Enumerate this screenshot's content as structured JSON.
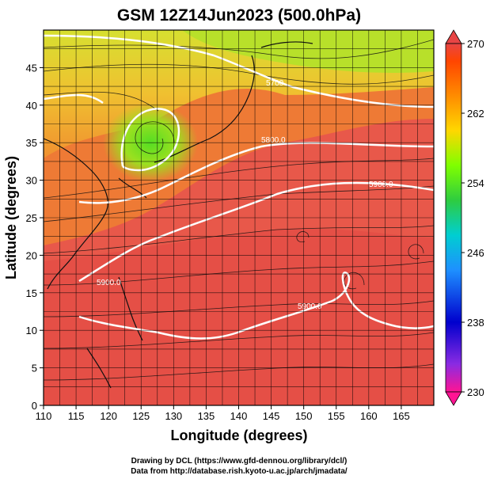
{
  "title": "GSM 12Z14Jun2023 (500.0hPa)",
  "xlabel": "Longitude (degrees)",
  "ylabel": "Latitude  (degrees)",
  "credit_line1": "Drawing by DCL (https://www.gfd-dennou.org/library/dcl/)",
  "credit_line2": "Data from http://database.rish.kyoto-u.ac.jp/arch/jmadata/",
  "chart_data": {
    "type": "heatmap",
    "title": "GSM 12Z14Jun2023 (500.0hPa)",
    "xlabel": "Longitude (degrees)",
    "ylabel": "Latitude  (degrees)",
    "xlim": [
      110,
      170
    ],
    "ylim": [
      0,
      50
    ],
    "x_ticks": [
      "110",
      "115",
      "120",
      "125",
      "130",
      "135",
      "140",
      "145",
      "150",
      "155",
      "160",
      "165"
    ],
    "y_ticks": [
      "0",
      "5",
      "10",
      "15",
      "20",
      "25",
      "30",
      "35",
      "40",
      "45"
    ],
    "colorbar": {
      "min": 230,
      "max": 270,
      "labels": [
        "270",
        "262",
        "254",
        "246",
        "238",
        "230"
      ],
      "colors": [
        "#ff1493",
        "#6a0dad",
        "#0000cd",
        "#1e90ff",
        "#00ced1",
        "#32cd32",
        "#7fff00",
        "#ffd700",
        "#ff8c00",
        "#ff4500",
        "#e84545"
      ]
    },
    "contours": [
      {
        "label": "5700",
        "lon": 146,
        "lat": 44.5
      },
      {
        "label": "5800.0",
        "lon": 140.5,
        "lat": 36
      },
      {
        "label": "5900.0",
        "lon": 152.5,
        "lat": 29.5
      },
      {
        "label": "5900.0",
        "lon": 119,
        "lat": 17
      },
      {
        "label": "5900.0",
        "lon": 146,
        "lat": 13
      }
    ],
    "grid": true,
    "field_description": "temperature shading with wind streamlines and geopotential height contours"
  }
}
